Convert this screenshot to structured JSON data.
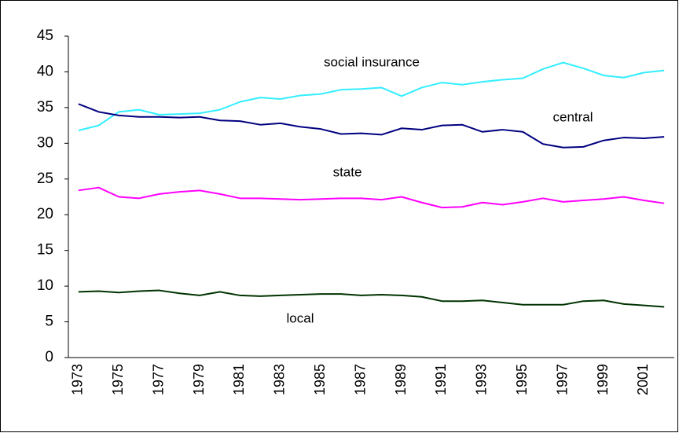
{
  "chart_data": {
    "type": "line",
    "categories": [
      "1973",
      null,
      "1975",
      null,
      "1977",
      null,
      "1979",
      null,
      "1981",
      null,
      "1983",
      null,
      "1985",
      null,
      "1987",
      null,
      "1989",
      null,
      "1991",
      null,
      "1993",
      null,
      "1995",
      null,
      "1997",
      null,
      "1999",
      null,
      "2001",
      null
    ],
    "series": [
      {
        "name": "social insurance",
        "color": "#33eeff",
        "values": [
          31.8,
          32.5,
          34.4,
          34.7,
          34.0,
          34.1,
          34.2,
          34.7,
          35.8,
          36.4,
          36.2,
          36.7,
          36.9,
          37.5,
          37.6,
          37.8,
          36.6,
          37.8,
          38.5,
          38.2,
          38.6,
          38.9,
          39.1,
          40.4,
          41.3,
          40.5,
          39.5,
          39.2,
          39.9,
          40.2
        ]
      },
      {
        "name": "central",
        "color": "#000080",
        "values": [
          35.5,
          34.4,
          33.9,
          33.7,
          33.7,
          33.6,
          33.7,
          33.2,
          33.1,
          32.6,
          32.8,
          32.3,
          32.0,
          31.3,
          31.4,
          31.2,
          32.1,
          31.9,
          32.5,
          32.6,
          31.6,
          31.9,
          31.6,
          29.9,
          29.4,
          29.5,
          30.4,
          30.8,
          30.7,
          30.9
        ]
      },
      {
        "name": "state",
        "color": "#ff00ff",
        "values": [
          23.4,
          23.8,
          22.5,
          22.3,
          22.9,
          23.2,
          23.4,
          22.9,
          22.3,
          22.3,
          22.2,
          22.1,
          22.2,
          22.3,
          22.3,
          22.1,
          22.5,
          21.7,
          21.0,
          21.1,
          21.7,
          21.4,
          21.8,
          22.3,
          21.8,
          22.0,
          22.2,
          22.5,
          22.0,
          21.6
        ]
      },
      {
        "name": "local",
        "color": "#003300",
        "values": [
          9.2,
          9.3,
          9.1,
          9.3,
          9.4,
          9.0,
          8.7,
          9.2,
          8.7,
          8.6,
          8.7,
          8.8,
          8.9,
          8.9,
          8.7,
          8.8,
          8.7,
          8.5,
          7.9,
          7.9,
          8.0,
          7.7,
          7.4,
          7.4,
          7.4,
          7.9,
          8.0,
          7.5,
          7.3,
          7.1
        ]
      }
    ],
    "ylim": [
      0,
      45
    ],
    "yticks": [
      0,
      5,
      10,
      15,
      20,
      25,
      30,
      35,
      40,
      45
    ],
    "grid": false
  }
}
